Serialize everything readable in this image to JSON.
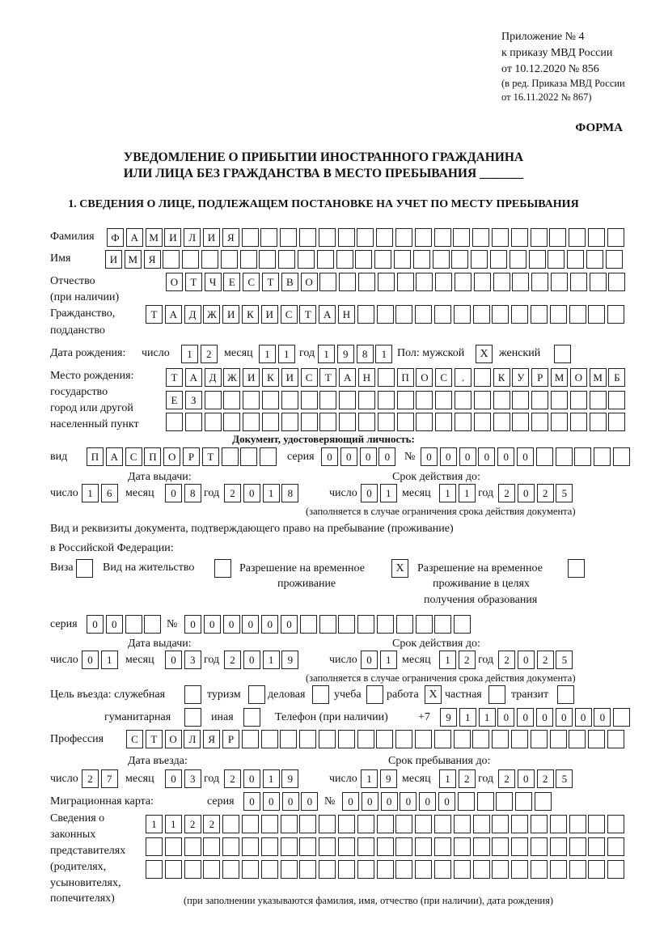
{
  "header": {
    "appendix": "Приложение № 4",
    "order": "к приказу МВД России",
    "order_date": "от 10.12.2020 № 856",
    "revision_1": "(в ред. Приказа МВД России",
    "revision_2": "от 16.11.2022 № 867)",
    "form_label": "ФОРМА"
  },
  "title": {
    "line1": "УВЕДОМЛЕНИЕ О ПРИБЫТИИ ИНОСТРАННОГО ГРАЖДАНИНА",
    "line2": "ИЛИ ЛИЦА БЕЗ ГРАЖДАНСТВА В МЕСТО ПРЕБЫВАНИЯ _______"
  },
  "section1": "1. СВЕДЕНИЯ О ЛИЦЕ, ПОДЛЕЖАЩЕМ ПОСТАНОВКЕ НА УЧЕТ ПО МЕСТУ ПРЕБЫВАНИЯ",
  "person": {
    "surname_label": "Фамилия",
    "surname": "ФАМИЛИЯ",
    "name_label": "Имя",
    "name": "ИМЯ",
    "patronymic_label": "Отчество",
    "patronymic_label2": "(при наличии)",
    "patronymic": "ОТЧЕСТВО",
    "citizenship_label": "Гражданство,",
    "citizenship_label2": "подданство",
    "citizenship": "ТАДЖИКИСТАН",
    "dob_label": "Дата рождения:",
    "day_label": "число",
    "month_label": "месяц",
    "year_label": "год",
    "dob_day": "12",
    "dob_month": "11",
    "dob_year": "1981",
    "sex_label": "Пол: мужской",
    "female_label": "женский",
    "male_mark": "X",
    "female_mark": "",
    "pob_label1": "Место рождения:",
    "pob_label2": "государство",
    "pob_label3": "город или другой",
    "pob_label4": "населенный пункт",
    "pob_row1": "ТАДЖИКИСТАН ПОС. КУРМОМБ",
    "pob_row2": "ЕЗ",
    "pob_row3": ""
  },
  "id_doc": {
    "heading": "Документ, удостоверяющий личность:",
    "type_label": "вид",
    "type": "ПАСПОРТ",
    "series_label": "серия",
    "series": "0000",
    "number_label": "№",
    "number": "000000",
    "issue_label": "Дата выдачи:",
    "issue_day": "16",
    "issue_month": "08",
    "issue_year": "2018",
    "valid_label": "Срок действия до:",
    "valid_day": "01",
    "valid_month": "11",
    "valid_year": "2025",
    "note": "(заполняется в случае ограничения срока действия документа)"
  },
  "stay_doc": {
    "heading1": "Вид и реквизиты документа, подтверждающего право на пребывание (проживание)",
    "heading2": "в Российской Федерации:",
    "visa_label": "Виза",
    "visa_mark": "",
    "residence_label": "Вид на жительство",
    "residence_mark": "",
    "trp_label1": "Разрешение на временное",
    "trp_label2": "проживание",
    "trp_mark": "X",
    "trp_edu_label1": "Разрешение на временное",
    "trp_edu_label2": "проживание в целях",
    "trp_edu_label3": "получения образования",
    "trp_edu_mark": "",
    "series_label": "серия",
    "series": "00",
    "number_label": "№",
    "number": "000000",
    "issue_label": "Дата выдачи:",
    "issue_day": "01",
    "issue_month": "03",
    "issue_year": "2019",
    "valid_label": "Срок действия до:",
    "valid_day": "01",
    "valid_month": "12",
    "valid_year": "2025",
    "note": "(заполняется в случае ограничения срока действия документа)"
  },
  "purpose": {
    "label": "Цель въезда: служебная",
    "options": [
      {
        "label": "туризм",
        "mark": ""
      },
      {
        "label": "деловая",
        "mark": ""
      },
      {
        "label": "учеба",
        "mark": ""
      },
      {
        "label": "работа",
        "mark": ""
      },
      {
        "label": "частная",
        "mark": "X"
      },
      {
        "label": "транзит",
        "mark": ""
      },
      {
        "label": "гуманитарная",
        "mark": ""
      },
      {
        "label": "иная",
        "mark": ""
      }
    ],
    "service_mark": "",
    "phone_label": "Телефон (при наличии)",
    "phone_prefix": "+7",
    "phone": "911000000"
  },
  "profession": {
    "label": "Профессия",
    "value": "СТОЛЯР"
  },
  "entry": {
    "entry_label": "Дата въезда:",
    "entry_day": "27",
    "entry_month": "03",
    "entry_year": "2019",
    "stay_label": "Срок пребывания до:",
    "stay_day": "19",
    "stay_month": "12",
    "stay_year": "2025"
  },
  "migration_card": {
    "label": "Миграционная карта:",
    "series_label": "серия",
    "series": "0000",
    "number_label": "№",
    "number": "000000"
  },
  "representatives": {
    "label_lines": [
      "Сведения о",
      "законных",
      "представителях",
      "(родителях,",
      "усыновителях,",
      "попечителях)"
    ],
    "row1": "1122",
    "row2": "",
    "row3": "",
    "note": "(при заполнении указываются фамилия, имя, отчество (при наличии), дата рождения)"
  }
}
